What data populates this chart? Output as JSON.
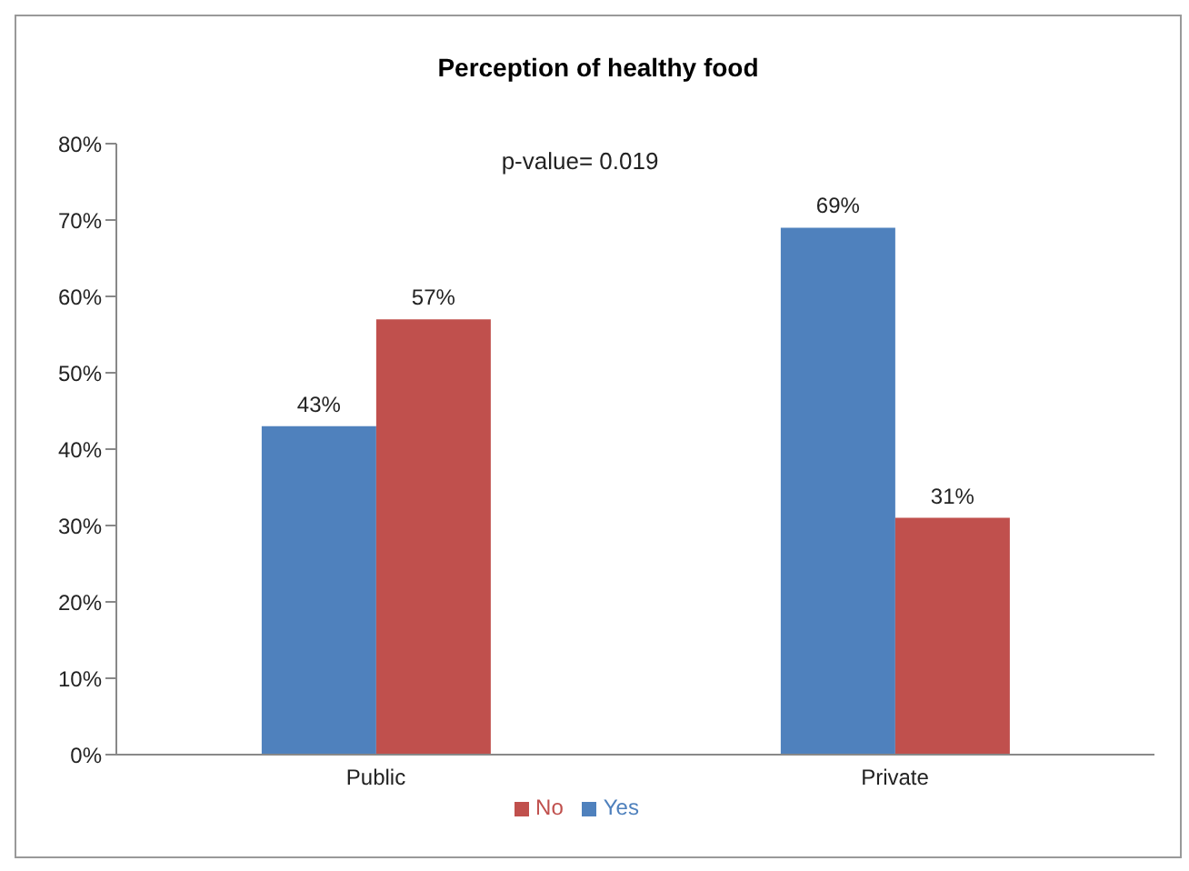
{
  "chart_data": {
    "type": "bar",
    "title": "Perception of healthy food",
    "categories": [
      "Public",
      "Private"
    ],
    "series": [
      {
        "name": "Yes",
        "color": "#4f81bd",
        "values": [
          43,
          69
        ],
        "value_labels": [
          "43%",
          "69%"
        ]
      },
      {
        "name": "No",
        "color": "#c0504d",
        "values": [
          57,
          31
        ],
        "value_labels": [
          "57%",
          "31%"
        ]
      }
    ],
    "ylim": [
      0,
      80
    ],
    "yticks": [
      {
        "value": 0,
        "label": "0%"
      },
      {
        "value": 10,
        "label": "10%"
      },
      {
        "value": 20,
        "label": "20%"
      },
      {
        "value": 30,
        "label": "30%"
      },
      {
        "value": 40,
        "label": "40%"
      },
      {
        "value": 50,
        "label": "50%"
      },
      {
        "value": 60,
        "label": "60%"
      },
      {
        "value": 70,
        "label": "70%"
      },
      {
        "value": 80,
        "label": "80%"
      }
    ],
    "annotations": [
      "p-value= 0.019"
    ],
    "legend": "bottom",
    "grid": false
  }
}
